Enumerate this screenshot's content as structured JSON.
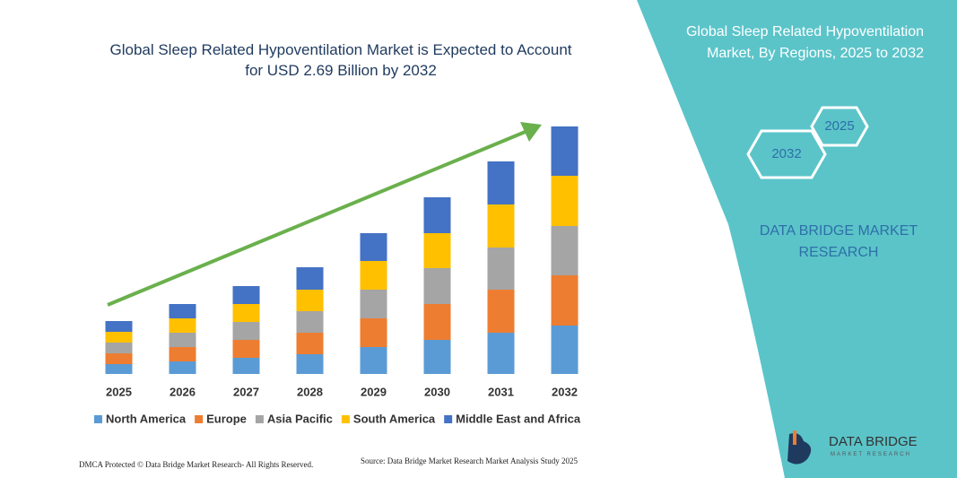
{
  "chart_data": {
    "type": "stacked-bar",
    "title": "Global Sleep Related Hypoventilation Market is Expected to Account for USD 2.69 Billion by 2032",
    "categories": [
      "2025",
      "2026",
      "2027",
      "2028",
      "2029",
      "2030",
      "2031",
      "2032"
    ],
    "series": [
      {
        "name": "North America",
        "color": "#5b9bd5",
        "values": [
          11,
          14,
          18,
          22,
          30,
          38,
          46,
          54
        ]
      },
      {
        "name": "Europe",
        "color": "#ed7d31",
        "values": [
          12,
          16,
          20,
          24,
          32,
          40,
          48,
          56
        ]
      },
      {
        "name": "Asia Pacific",
        "color": "#a5a5a5",
        "values": [
          12,
          16,
          20,
          24,
          32,
          40,
          47,
          55
        ]
      },
      {
        "name": "South America",
        "color": "#ffc000",
        "values": [
          12,
          16,
          20,
          24,
          32,
          39,
          48,
          56
        ]
      },
      {
        "name": "Middle East and Africa",
        "color": "#4472c4",
        "values": [
          12,
          16,
          20,
          25,
          31,
          40,
          48,
          55
        ]
      }
    ],
    "legend": "bottom"
  },
  "panel": {
    "title": "Global Sleep Related Hypoventilation Market, By Regions, 2025 to 2032",
    "hex_top": "2025",
    "hex_bottom": "2032",
    "brand": "DATA BRIDGE MARKET RESEARCH"
  },
  "footer": {
    "left": "DMCA Protected © Data Bridge Market Research- All Rights Reserved.",
    "right": "Source: Data Bridge Market Research Market Analysis Study 2025"
  },
  "logo": {
    "name": "DATA BRIDGE",
    "tagline": "MARKET RESEARCH"
  }
}
